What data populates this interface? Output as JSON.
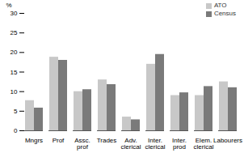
{
  "chart_data": {
    "type": "bar",
    "categories": [
      "Mngrs",
      "Prof",
      "Assc. prof",
      "Trades",
      "Adv. clerical",
      "Inter. clerical",
      "Inter. prod",
      "Elem. clerical",
      "Labourers"
    ],
    "series": [
      {
        "name": "ATO",
        "color": "#c8c8c8",
        "values": [
          7.7,
          18.8,
          10,
          13,
          3.5,
          17,
          9,
          9,
          12.5
        ]
      },
      {
        "name": "Census",
        "color": "#7a7a7a",
        "values": [
          5.8,
          18,
          10.5,
          11.8,
          2.8,
          19.5,
          9.7,
          11.3,
          11
        ]
      }
    ],
    "y_label": "%",
    "ylim": [
      0,
      30
    ],
    "yticks": [
      0,
      5,
      10,
      15,
      20,
      25,
      30
    ],
    "grid": false,
    "legend": "top-right"
  }
}
